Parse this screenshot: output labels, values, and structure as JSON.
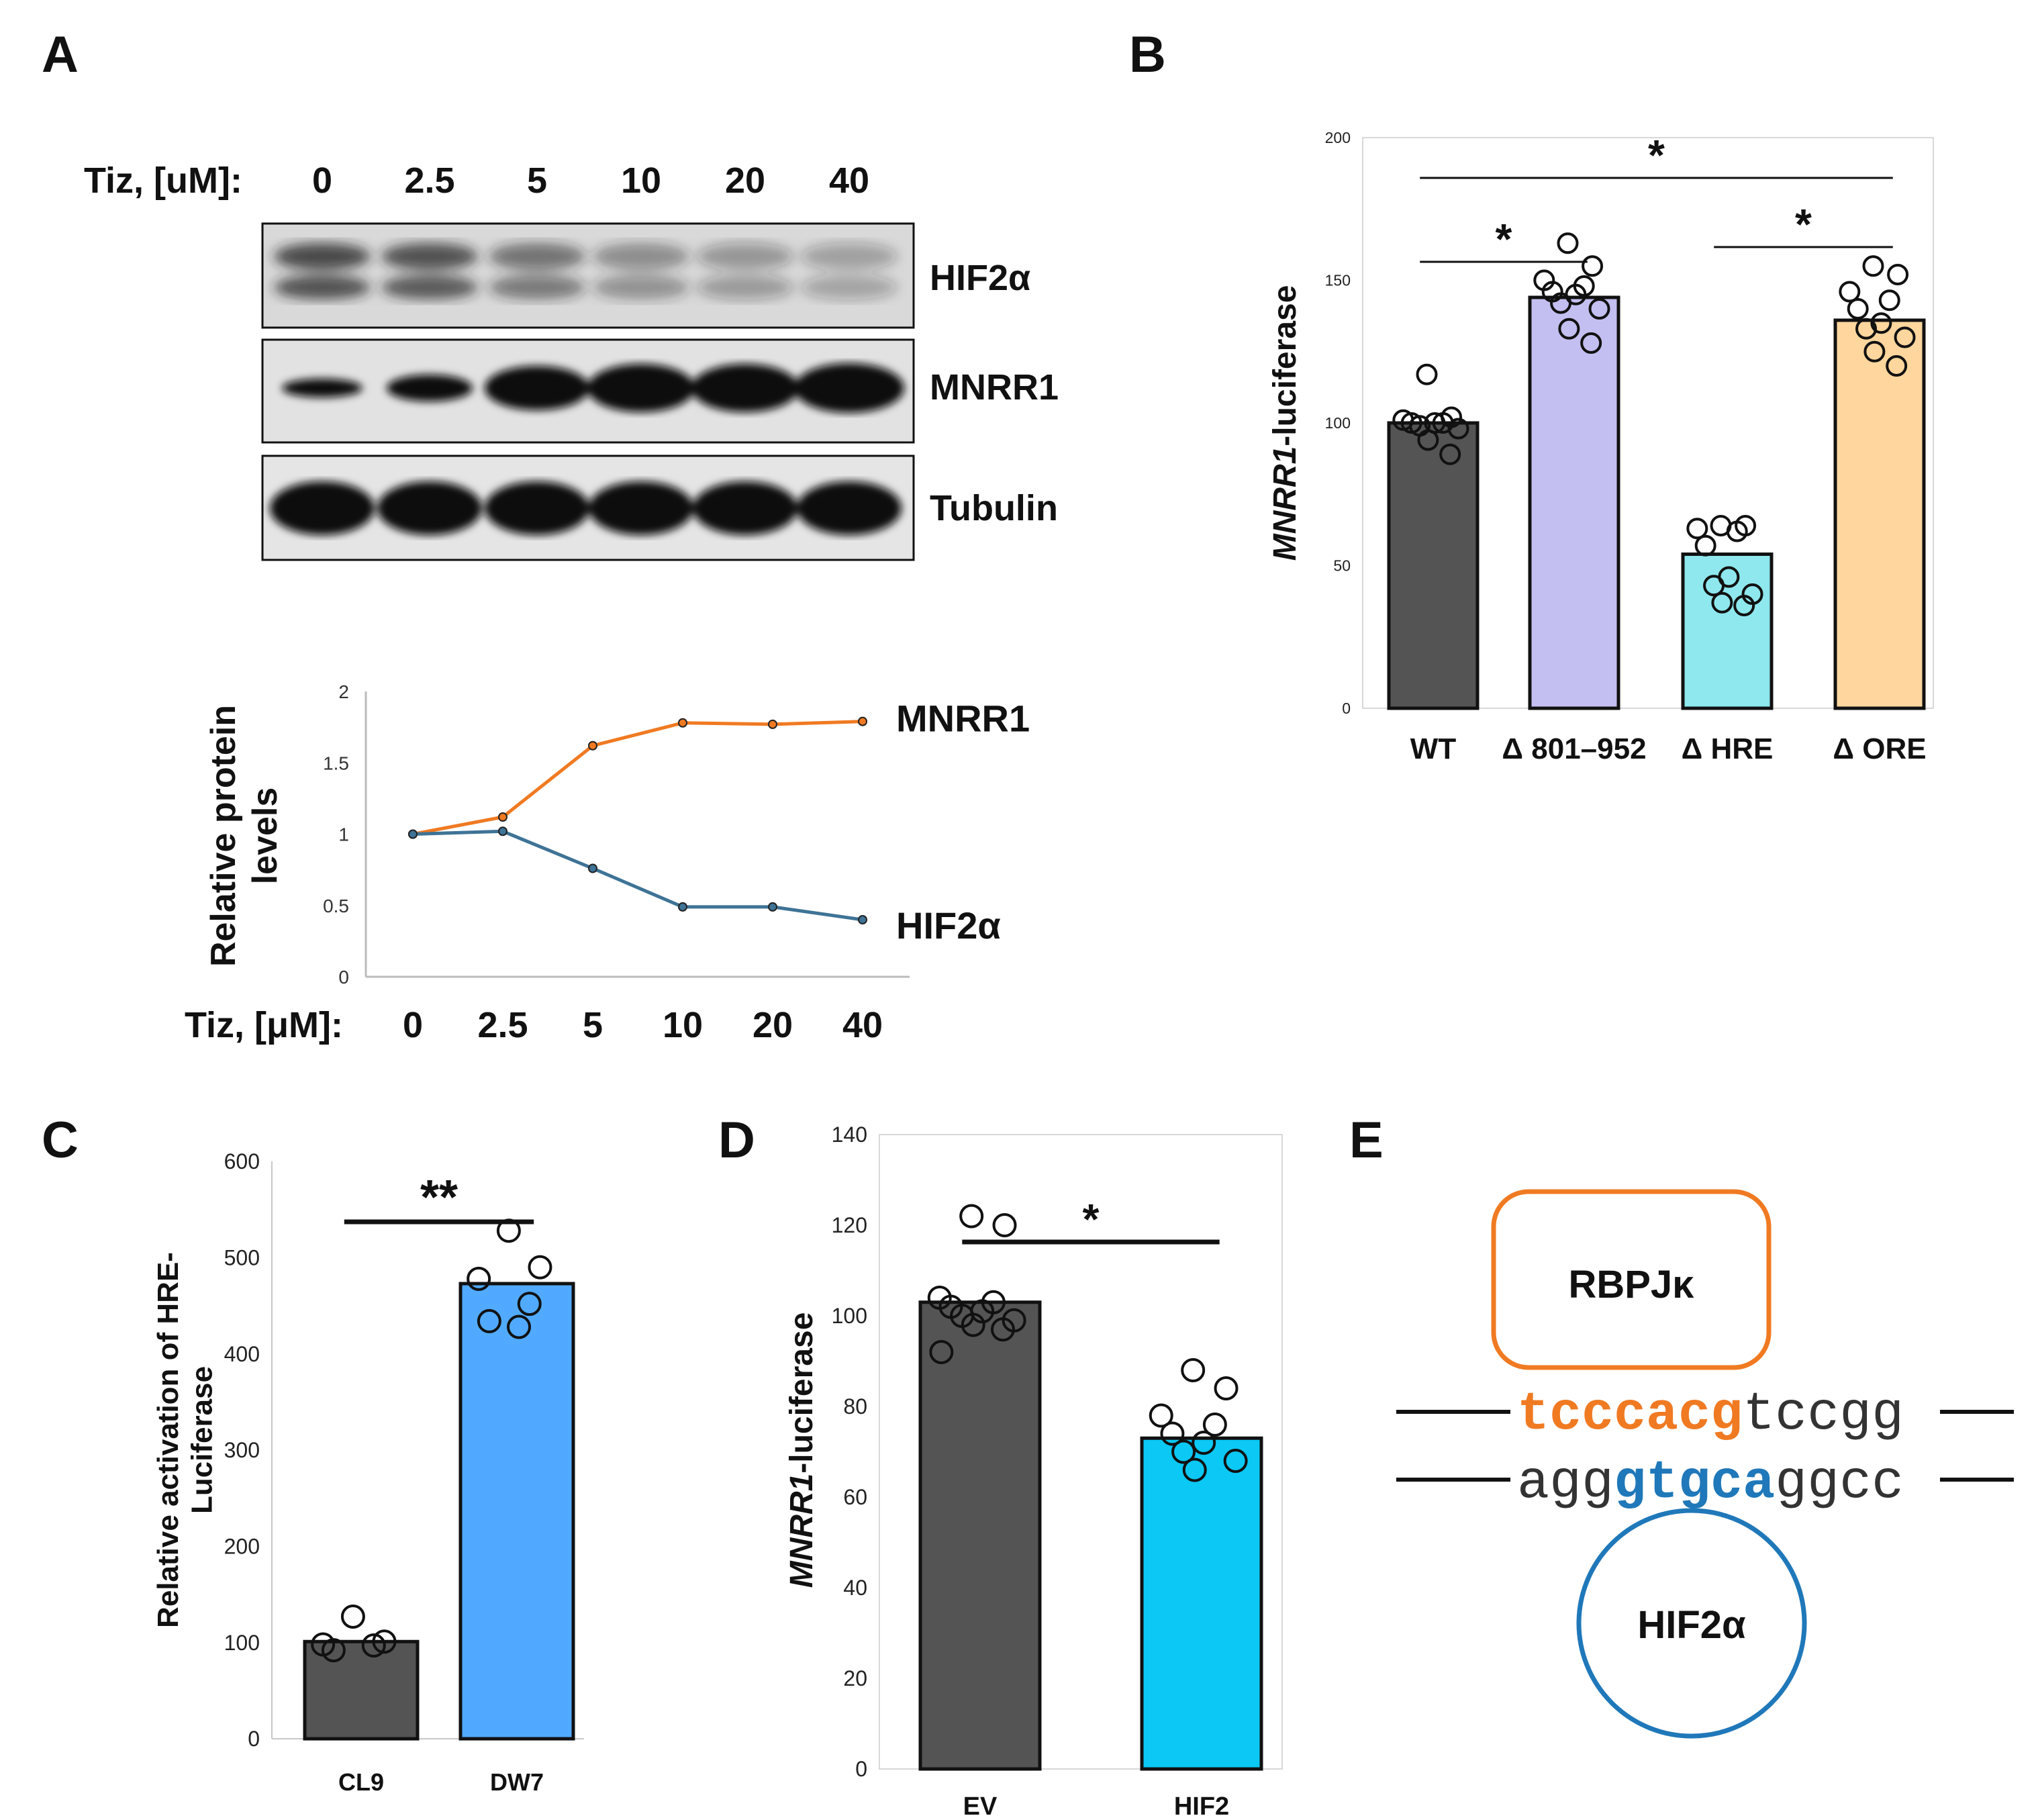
{
  "panels": {
    "A": "A",
    "B": "B",
    "C": "C",
    "D": "D",
    "E": "E"
  },
  "colors": {
    "dark_bar": "#545454",
    "lavender": "#c3bff0",
    "cyan_light": "#8ee8ee",
    "peach": "#ffd69e",
    "blue_c": "#51aaff",
    "blue_d": "#0bc8f5",
    "orange": "#f07a22",
    "steel": "#3e7396",
    "hif_blue": "#1f78b9"
  },
  "western": {
    "dose_label": "Tiz, [uM]:",
    "doses": [
      "0",
      "2.5",
      "5",
      "10",
      "20",
      "40"
    ],
    "blots": [
      "HIF2α",
      "MNRR1",
      "Tubulin"
    ]
  },
  "chart_data": [
    {
      "id": "A-line",
      "type": "line",
      "ylabel": "Relative protein levels",
      "xlabel": "Tiz, [μM]:",
      "categories": [
        "0",
        "2.5",
        "5",
        "10",
        "20",
        "40"
      ],
      "yticks": [
        "0",
        "0.5",
        "1",
        "1.5",
        "2"
      ],
      "ylim": [
        0,
        2
      ],
      "series": [
        {
          "name": "MNRR1",
          "color": "#f07a22",
          "values": [
            1.0,
            1.12,
            1.62,
            1.78,
            1.77,
            1.79
          ]
        },
        {
          "name": "HIF2α",
          "color": "#3e7396",
          "values": [
            1.0,
            1.02,
            0.76,
            0.49,
            0.49,
            0.4
          ]
        }
      ]
    },
    {
      "id": "B",
      "type": "bar",
      "ylabel_italic": "MNRR1",
      "ylabel_rest": "-luciferase",
      "categories": [
        "WT",
        "Δ 801–952",
        "Δ HRE",
        "Δ ORE"
      ],
      "values": [
        100,
        144,
        54,
        136
      ],
      "ylim": [
        0,
        200
      ],
      "yticks": [
        "0",
        "50",
        "100",
        "150",
        "200"
      ],
      "points": [
        [
          117,
          102,
          101,
          100,
          100,
          100,
          99,
          98,
          94,
          89
        ],
        [
          163,
          155,
          150,
          148,
          146,
          145,
          142,
          140,
          133,
          128
        ],
        [
          64,
          64,
          63,
          62,
          57,
          46,
          43,
          40,
          37,
          36
        ],
        [
          155,
          152,
          146,
          143,
          140,
          135,
          133,
          130,
          125,
          120
        ]
      ],
      "significance": [
        {
          "from": 0,
          "to": 3,
          "label": "*",
          "y": 186
        },
        {
          "from": 0,
          "to": 1,
          "label": "*",
          "y": 156
        },
        {
          "from": 2,
          "to": 3,
          "label": "*",
          "y": 161
        }
      ]
    },
    {
      "id": "C",
      "type": "bar",
      "ylabel": "Relative activation of HRE-Luciferase",
      "ylabel_line1": "Relative activation of HRE-",
      "ylabel_line2": "Luciferase",
      "categories": [
        "CL9",
        "DW7"
      ],
      "values": [
        101,
        473
      ],
      "ylim": [
        0,
        600
      ],
      "yticks": [
        "0",
        "100",
        "200",
        "300",
        "400",
        "500",
        "600"
      ],
      "points": [
        [
          127,
          101,
          98,
          97,
          92
        ],
        [
          528,
          490,
          478,
          452,
          434,
          428
        ]
      ],
      "significance": [
        {
          "from": 0,
          "to": 1,
          "label": "**",
          "y": 535
        }
      ]
    },
    {
      "id": "D",
      "type": "bar",
      "ylabel_italic": "MNRR1",
      "ylabel_rest": "-luciferase",
      "categories": [
        "EV",
        "HIF2"
      ],
      "values": [
        103,
        73
      ],
      "ylim": [
        0,
        140
      ],
      "yticks": [
        "0",
        "20",
        "40",
        "60",
        "80",
        "100",
        "120",
        "140"
      ],
      "points": [
        [
          122,
          120,
          104,
          103,
          102,
          101,
          100,
          99,
          98,
          97,
          92
        ],
        [
          88,
          84,
          78,
          76,
          74,
          72,
          70,
          68,
          66
        ]
      ],
      "significance": [
        {
          "from": 0,
          "to": 1,
          "label": "*",
          "y": 116
        }
      ]
    }
  ],
  "schematic": {
    "rbp_label": "RBPJκ",
    "hif_label": "HIF2α",
    "top_highlight": "tcccacg",
    "top_rest": "tccgg",
    "bottom_pre": "agg",
    "bottom_highlight": "gtgca",
    "bottom_rest": "ggcc"
  }
}
